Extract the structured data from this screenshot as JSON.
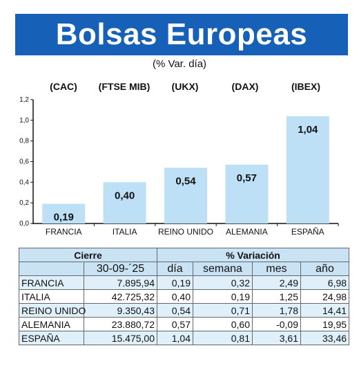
{
  "title": "Bolsas Europeas",
  "subtitle": "(% Var. día)",
  "indices": [
    "(CAC)",
    "(FTSE MIB)",
    "(UKX)",
    "(DAX)",
    "(IBEX)"
  ],
  "chart_data": {
    "type": "bar",
    "categories": [
      "FRANCIA",
      "ITALIA",
      "REINO UNIDO",
      "ALEMANIA",
      "ESPAÑA"
    ],
    "values": [
      0.19,
      0.4,
      0.54,
      0.57,
      1.04
    ],
    "value_labels": [
      "0,19",
      "0,40",
      "0,54",
      "0,57",
      "1,04"
    ],
    "ylim": [
      0,
      1.2
    ],
    "y_ticks": [
      "0,0",
      "0,2",
      "0,4",
      "0,6",
      "0,8",
      "1,0",
      "1,2"
    ],
    "grid": false,
    "bar_color": "#bde0f7"
  },
  "table": {
    "header_cierre": "Cierre",
    "header_variacion": "% Variación",
    "date": "30-09-´25",
    "col_dia": "día",
    "col_semana": "semana",
    "col_mes": "mes",
    "col_ano": "año",
    "rows": [
      {
        "pais": "FRANCIA",
        "cierre": "7.895,94",
        "dia": "0,19",
        "semana": "0,32",
        "mes": "2,49",
        "ano": "6,98"
      },
      {
        "pais": "ITALIA",
        "cierre": "42.725,32",
        "dia": "0,40",
        "semana": "0,19",
        "mes": "1,25",
        "ano": "24,98"
      },
      {
        "pais": "REINO UNIDO",
        "cierre": "9.350,43",
        "dia": "0,54",
        "semana": "0,71",
        "mes": "1,78",
        "ano": "14,41"
      },
      {
        "pais": "ALEMANIA",
        "cierre": "23.880,72",
        "dia": "0,57",
        "semana": "0,60",
        "mes": "-0,09",
        "ano": "19,95"
      },
      {
        "pais": "ESPAÑA",
        "cierre": "15.475,00",
        "dia": "1,04",
        "semana": "0,81",
        "mes": "3,61",
        "ano": "33,46"
      }
    ]
  }
}
